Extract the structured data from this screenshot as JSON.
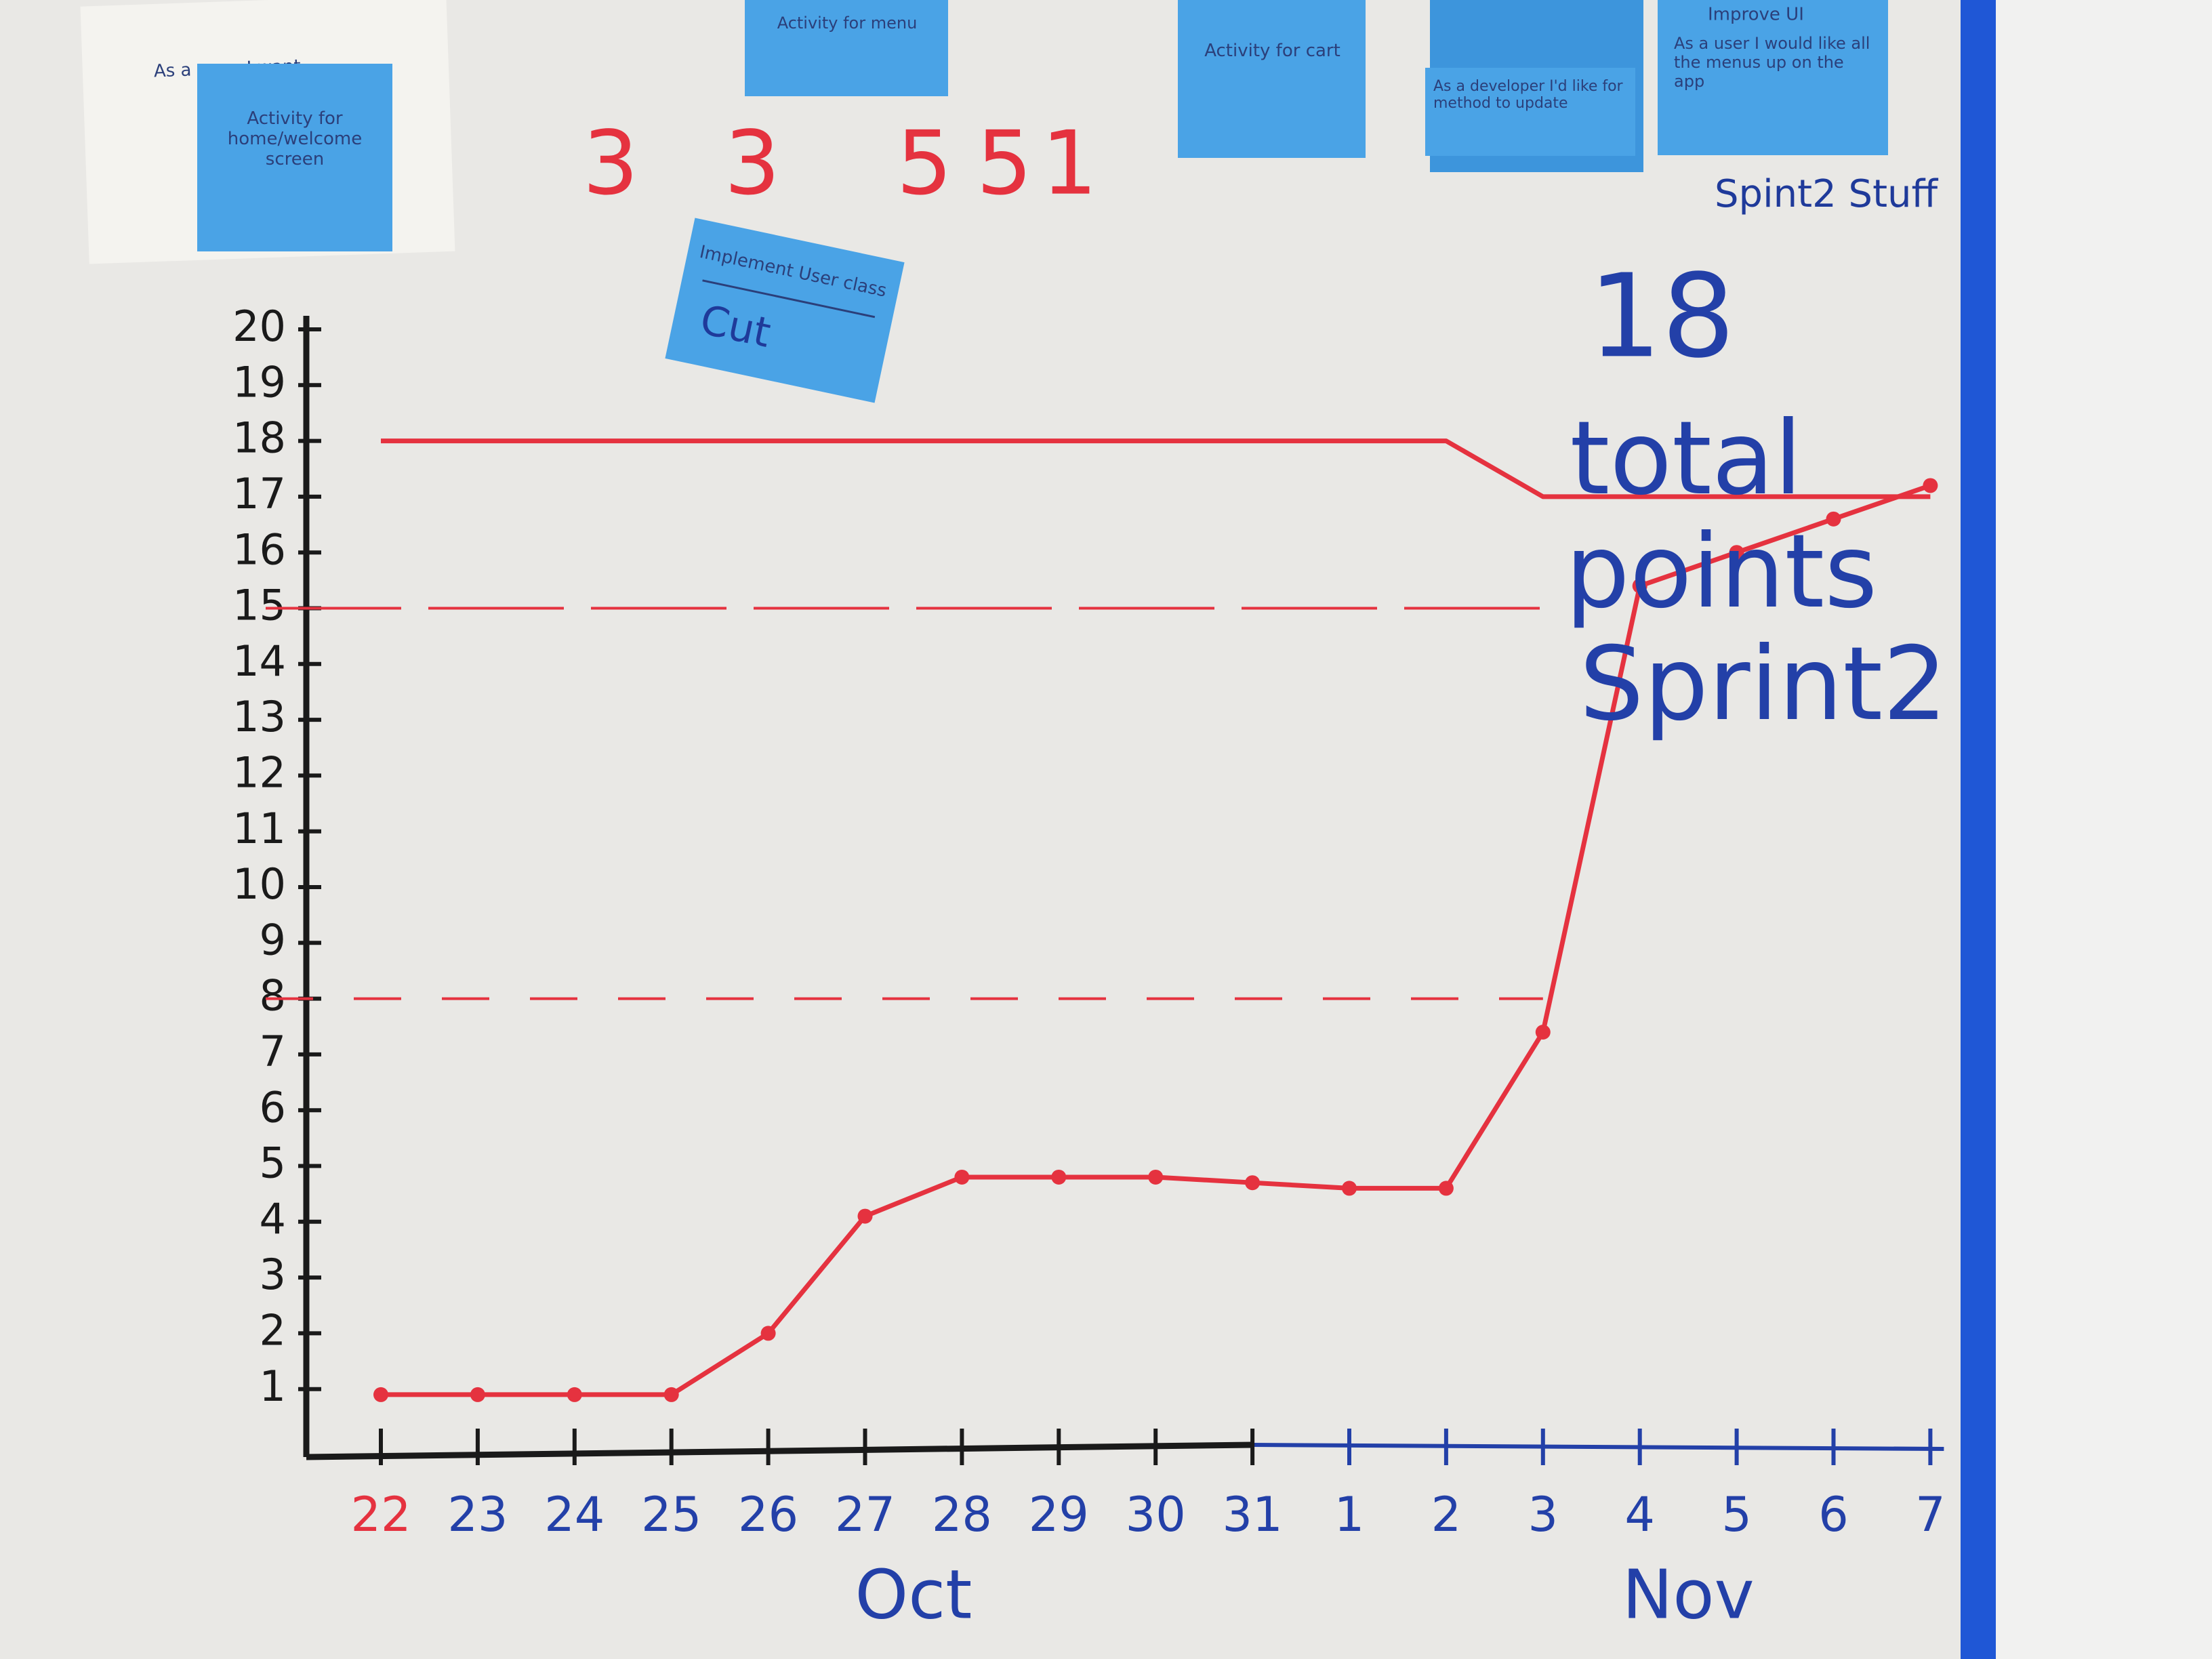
{
  "chart_data": {
    "type": "line",
    "categories": [
      "22",
      "23",
      "24",
      "25",
      "26",
      "27",
      "28",
      "29",
      "30",
      "31",
      "1",
      "2",
      "3",
      "4",
      "5",
      "6",
      "7"
    ],
    "month_labels": [
      "Oct",
      "Nov"
    ],
    "series": [
      {
        "color": "#e5323f",
        "values": [
          0.9,
          0.9,
          0.9,
          0.9,
          2,
          4.1,
          4.8,
          4.8,
          4.8,
          4.7,
          4.6,
          4.6,
          7.4,
          15.4,
          16,
          16.6,
          17.2
        ],
        "markers": true
      },
      {
        "color": "#e5323f",
        "values": [
          18,
          18,
          18,
          18,
          18,
          18,
          18,
          18,
          18,
          18,
          18,
          18,
          17,
          17,
          17,
          17,
          17
        ],
        "markers": false
      }
    ],
    "reference_lines": [
      15,
      8
    ],
    "ylim": [
      0,
      20
    ],
    "yticks": [
      1,
      2,
      3,
      4,
      5,
      6,
      7,
      8,
      9,
      10,
      11,
      12,
      13,
      14,
      15,
      16,
      17,
      18,
      19,
      20
    ],
    "annotations": [
      "18",
      "total",
      "points",
      "Sprint2"
    ]
  },
  "point_labels": [
    3,
    3,
    5,
    5,
    1
  ],
  "notes": {
    "paper": "As a user, I want",
    "welcome": "Activity for home/welcome screen",
    "menu": "Activity for menu",
    "user_class": "Implement User class",
    "cut": "Cut",
    "cart": "Activity for cart",
    "developer": "As a developer I'd like for method to update",
    "improve": "Improve UI",
    "menus": "As a user I would like all the menus up on the app",
    "sprint_stuff": "Spint2 Stuff"
  }
}
